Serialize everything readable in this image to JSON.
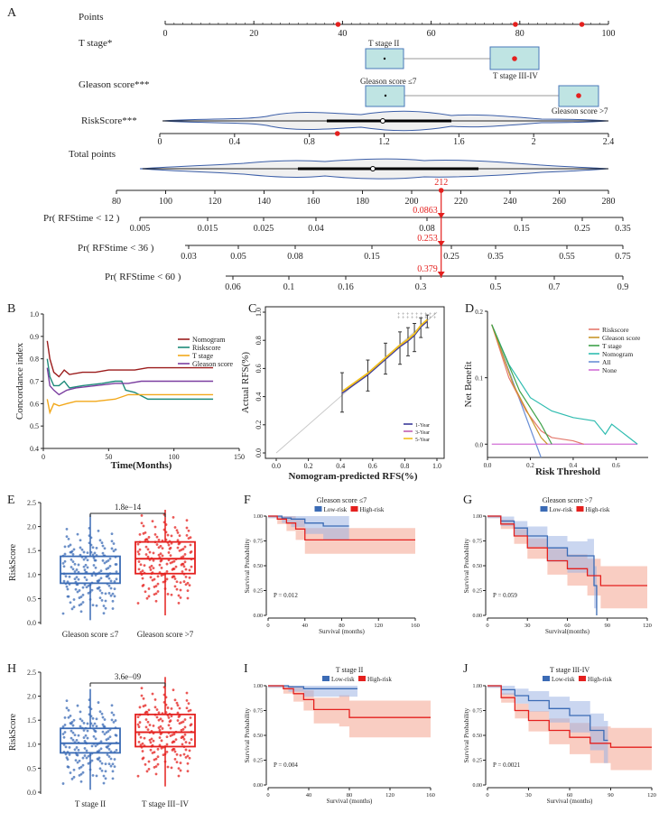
{
  "panel_letters": {
    "A": "A",
    "B": "B",
    "C": "C",
    "D": "D",
    "E": "E",
    "F": "F",
    "G": "G",
    "H": "H",
    "I": "I",
    "J": "J"
  },
  "colors": {
    "red": "#e4201e",
    "blue": "#3b6bb5",
    "teal_box": "#bfe4e3",
    "nomogram_line": "#9b1c1c",
    "riskscore_line": "#1e8a7a",
    "tstage_line": "#f2a81a",
    "gleason_line": "#7b3fa0",
    "high_fill": "#f4a48f",
    "low_fill": "#9fb5e3"
  },
  "chart_data": [
    {
      "id": "A",
      "type": "nomogram",
      "rows": {
        "points": {
          "label": "Points",
          "ticks": [
            "0",
            "20",
            "40",
            "60",
            "80",
            "100"
          ],
          "range": [
            0,
            100
          ],
          "markers": [
            39,
            79,
            94
          ]
        },
        "tstage": {
          "label": "T stage*",
          "box1": "T stage II",
          "box2": "T stage III-IV"
        },
        "gleason": {
          "label": "Gleason score***",
          "box1": "Gleason score ≤7",
          "box2": "Gleason score >7"
        },
        "riskscore": {
          "label": "RiskScore***",
          "ticks": [
            "0",
            "0.4",
            "0.8",
            "1.2",
            "1.6",
            "2",
            "2.4"
          ],
          "range": [
            0,
            2.4
          ],
          "marker": 0.95
        },
        "total": {
          "label": "Total points",
          "ticks": [
            "80",
            "100",
            "120",
            "140",
            "160",
            "180",
            "200",
            "220",
            "240",
            "260",
            "280"
          ],
          "range": [
            80,
            280
          ],
          "value": "212"
        },
        "pr12": {
          "label": "Pr( RFStime < 12 )",
          "ticks": [
            "0.005",
            "0.015",
            "0.025",
            "0.04",
            "0.08",
            "0.15",
            "0.25",
            "0.35"
          ],
          "value": "0.0863"
        },
        "pr36": {
          "label": "Pr( RFStime < 36 )",
          "ticks": [
            "0.03",
            "0.05",
            "0.08",
            "0.15",
            "0.25",
            "0.35",
            "0.55",
            "0.75"
          ],
          "value": "0.253"
        },
        "pr60": {
          "label": "Pr( RFStime < 60 )",
          "ticks": [
            "0.06",
            "0.1",
            "0.16",
            "0.3",
            "0.5",
            "0.7",
            "0.9"
          ],
          "value": "0.379"
        }
      }
    },
    {
      "id": "B",
      "type": "line",
      "xlabel": "Time(Months)",
      "ylabel": "Concordance index",
      "xlim": [
        0,
        150
      ],
      "ylim": [
        0.4,
        1.0
      ],
      "xticks": [
        "0",
        "50",
        "100",
        "150"
      ],
      "yticks": [
        "0.4",
        "0.5",
        "0.6",
        "0.7",
        "0.8",
        "0.9",
        "1.0"
      ],
      "legend": [
        "Nomogram",
        "Riskscore",
        "T stage",
        "Gleason score"
      ],
      "series": [
        {
          "name": "Nomogram",
          "points": [
            [
              3,
              0.88
            ],
            [
              5,
              0.8
            ],
            [
              8,
              0.74
            ],
            [
              12,
              0.72
            ],
            [
              16,
              0.75
            ],
            [
              20,
              0.73
            ],
            [
              30,
              0.74
            ],
            [
              40,
              0.74
            ],
            [
              50,
              0.75
            ],
            [
              70,
              0.75
            ],
            [
              80,
              0.76
            ],
            [
              100,
              0.76
            ],
            [
              130,
              0.76
            ]
          ]
        },
        {
          "name": "Riskscore",
          "points": [
            [
              3,
              0.8
            ],
            [
              5,
              0.72
            ],
            [
              8,
              0.68
            ],
            [
              12,
              0.68
            ],
            [
              16,
              0.7
            ],
            [
              20,
              0.67
            ],
            [
              30,
              0.68
            ],
            [
              45,
              0.69
            ],
            [
              55,
              0.7
            ],
            [
              60,
              0.7
            ],
            [
              63,
              0.66
            ],
            [
              70,
              0.65
            ],
            [
              80,
              0.62
            ],
            [
              130,
              0.62
            ]
          ]
        },
        {
          "name": "T stage",
          "points": [
            [
              3,
              0.62
            ],
            [
              5,
              0.56
            ],
            [
              8,
              0.6
            ],
            [
              12,
              0.59
            ],
            [
              18,
              0.6
            ],
            [
              25,
              0.61
            ],
            [
              40,
              0.61
            ],
            [
              55,
              0.62
            ],
            [
              65,
              0.64
            ],
            [
              100,
              0.64
            ],
            [
              130,
              0.64
            ]
          ]
        },
        {
          "name": "Gleason score",
          "points": [
            [
              3,
              0.76
            ],
            [
              5,
              0.68
            ],
            [
              8,
              0.66
            ],
            [
              12,
              0.64
            ],
            [
              18,
              0.66
            ],
            [
              25,
              0.67
            ],
            [
              40,
              0.68
            ],
            [
              55,
              0.69
            ],
            [
              65,
              0.69
            ],
            [
              75,
              0.7
            ],
            [
              100,
              0.7
            ],
            [
              130,
              0.7
            ]
          ]
        }
      ]
    },
    {
      "id": "C",
      "type": "calibration",
      "xlabel": "Nomogram-predicted RFS(%)",
      "ylabel": "Actual RFS(%)",
      "xticks": [
        "0.0",
        "0.2",
        "0.4",
        "0.6",
        "0.8",
        "1.0"
      ],
      "yticks": [
        "0.0",
        "0.2",
        "0.4",
        "0.6",
        "0.8",
        "1.0"
      ],
      "legend": [
        "1-Year",
        "3-Year",
        "5-Year"
      ],
      "points": [
        [
          0.41,
          0.43,
          0.29,
          0.57
        ],
        [
          0.57,
          0.56,
          0.44,
          0.66
        ],
        [
          0.68,
          0.67,
          0.56,
          0.78
        ],
        [
          0.77,
          0.76,
          0.63,
          0.86
        ],
        [
          0.82,
          0.8,
          0.69,
          0.89
        ],
        [
          0.86,
          0.84,
          0.72,
          0.92
        ],
        [
          0.9,
          0.9,
          0.82,
          0.96
        ],
        [
          0.94,
          0.94,
          0.89,
          0.98
        ]
      ]
    },
    {
      "id": "D",
      "type": "line",
      "xlabel": "Risk Threshold",
      "ylabel": "Net Benefit",
      "xlim": [
        0,
        0.75
      ],
      "ylim": [
        -0.02,
        0.2
      ],
      "xticks": [
        "0.0",
        "0.2",
        "0.4",
        "0.6"
      ],
      "yticks": [
        "0.0",
        "0.1",
        "0.2"
      ],
      "legend": [
        "Riskscore",
        "Gleason score",
        "T stage",
        "Nomogram",
        "All",
        "None"
      ],
      "series": [
        {
          "name": "All",
          "points": [
            [
              0.02,
              0.18
            ],
            [
              0.25,
              -0.02
            ]
          ]
        },
        {
          "name": "None",
          "points": [
            [
              0.02,
              0.0
            ],
            [
              0.7,
              0.0
            ]
          ]
        },
        {
          "name": "Nomogram",
          "points": [
            [
              0.02,
              0.18
            ],
            [
              0.1,
              0.12
            ],
            [
              0.2,
              0.07
            ],
            [
              0.3,
              0.05
            ],
            [
              0.4,
              0.04
            ],
            [
              0.5,
              0.035
            ],
            [
              0.55,
              0.015
            ],
            [
              0.58,
              0.03
            ],
            [
              0.62,
              0.02
            ],
            [
              0.66,
              0.01
            ],
            [
              0.7,
              0.0
            ]
          ]
        },
        {
          "name": "Riskscore",
          "points": [
            [
              0.02,
              0.18
            ],
            [
              0.1,
              0.1
            ],
            [
              0.18,
              0.05
            ],
            [
              0.25,
              0.02
            ],
            [
              0.3,
              0.01
            ],
            [
              0.4,
              0.005
            ],
            [
              0.45,
              0.0
            ]
          ]
        },
        {
          "name": "Gleason score",
          "points": [
            [
              0.02,
              0.18
            ],
            [
              0.12,
              0.09
            ],
            [
              0.2,
              0.04
            ],
            [
              0.25,
              0.01
            ],
            [
              0.28,
              0.0
            ]
          ]
        },
        {
          "name": "T stage",
          "points": [
            [
              0.02,
              0.18
            ],
            [
              0.15,
              0.08
            ],
            [
              0.25,
              0.03
            ],
            [
              0.3,
              0.0
            ]
          ]
        }
      ]
    },
    {
      "id": "E",
      "type": "boxplot",
      "ylabel": "RiskScore",
      "pvalue": "1.8e−14",
      "yticks": [
        "0.0",
        "0.5",
        "1.0",
        "1.5",
        "2.0",
        "2.5"
      ],
      "groups": [
        {
          "name": "Gleason score ≤7",
          "q1": 0.82,
          "median": 1.02,
          "q3": 1.38,
          "whisker_low": 0.05,
          "whisker_high": 2.25
        },
        {
          "name": "Gleason score >7",
          "q1": 1.02,
          "median": 1.33,
          "q3": 1.68,
          "whisker_low": 0.15,
          "whisker_high": 2.35
        }
      ]
    },
    {
      "id": "F",
      "type": "km",
      "title": "Gleason score ≤7",
      "xlabel": "Survival (months)",
      "ylabel": "Survival Probability",
      "xticks": [
        "0",
        "40",
        "80",
        "120",
        "160"
      ],
      "yticks": [
        "0.00",
        "0.25",
        "0.50",
        "0.75",
        "1.00"
      ],
      "pvalue": "P = 0.012",
      "legend": [
        "Low-risk",
        "High-risk"
      ],
      "curves": [
        {
          "name": "Low-risk",
          "xmax": 88,
          "points": [
            [
              0,
              1.0
            ],
            [
              15,
              0.98
            ],
            [
              25,
              0.97
            ],
            [
              40,
              0.93
            ],
            [
              60,
              0.9
            ],
            [
              88,
              0.9
            ]
          ]
        },
        {
          "name": "High-risk",
          "xmax": 160,
          "points": [
            [
              0,
              1.0
            ],
            [
              10,
              0.97
            ],
            [
              20,
              0.93
            ],
            [
              30,
              0.87
            ],
            [
              40,
              0.76
            ],
            [
              160,
              0.76
            ]
          ]
        }
      ]
    },
    {
      "id": "G",
      "type": "km",
      "title": "Gleason score >7",
      "xlabel": "Survival(months)",
      "ylabel": "Survival Probability",
      "xticks": [
        "0",
        "30",
        "60",
        "90",
        "120"
      ],
      "yticks": [
        "0.00",
        "0.25",
        "0.50",
        "0.75",
        "1.00"
      ],
      "pvalue": "P = 0.059",
      "legend": [
        "Low-risk",
        "High-risk"
      ],
      "curves": [
        {
          "name": "Low-risk",
          "xmax": 82,
          "points": [
            [
              0,
              1.0
            ],
            [
              10,
              0.95
            ],
            [
              20,
              0.88
            ],
            [
              30,
              0.8
            ],
            [
              45,
              0.68
            ],
            [
              60,
              0.6
            ],
            [
              75,
              0.6
            ],
            [
              80,
              0.3
            ],
            [
              82,
              0.0
            ]
          ]
        },
        {
          "name": "High-risk",
          "xmax": 120,
          "points": [
            [
              0,
              1.0
            ],
            [
              10,
              0.92
            ],
            [
              20,
              0.8
            ],
            [
              30,
              0.68
            ],
            [
              45,
              0.55
            ],
            [
              60,
              0.47
            ],
            [
              75,
              0.4
            ],
            [
              85,
              0.3
            ],
            [
              120,
              0.3
            ]
          ]
        }
      ]
    },
    {
      "id": "H",
      "type": "boxplot",
      "ylabel": "RiskScore",
      "pvalue": "3.6e−09",
      "yticks": [
        "0.0",
        "0.5",
        "1.0",
        "1.5",
        "2.0",
        "2.5"
      ],
      "groups": [
        {
          "name": "T stage II",
          "q1": 0.82,
          "median": 1.02,
          "q3": 1.33,
          "whisker_low": 0.05,
          "whisker_high": 2.15
        },
        {
          "name": "T stage III−IV",
          "q1": 0.95,
          "median": 1.25,
          "q3": 1.62,
          "whisker_low": 0.12,
          "whisker_high": 2.4
        }
      ]
    },
    {
      "id": "I",
      "type": "km",
      "title": "T stage II",
      "xlabel": "Survival (months)",
      "ylabel": "Survival Probability",
      "xticks": [
        "0",
        "40",
        "80",
        "120",
        "160"
      ],
      "yticks": [
        "0.00",
        "0.25",
        "0.50",
        "0.75",
        "1.00"
      ],
      "pvalue": "P = 0.004",
      "legend": [
        "Low-risk",
        "High-risk"
      ],
      "curves": [
        {
          "name": "Low-risk",
          "xmax": 88,
          "points": [
            [
              0,
              1.0
            ],
            [
              20,
              0.99
            ],
            [
              35,
              0.97
            ],
            [
              88,
              0.97
            ]
          ]
        },
        {
          "name": "High-risk",
          "xmax": 160,
          "points": [
            [
              0,
              1.0
            ],
            [
              15,
              0.97
            ],
            [
              25,
              0.92
            ],
            [
              35,
              0.86
            ],
            [
              45,
              0.76
            ],
            [
              70,
              0.76
            ],
            [
              80,
              0.68
            ],
            [
              160,
              0.68
            ]
          ]
        }
      ]
    },
    {
      "id": "J",
      "type": "km",
      "title": "T stage III-IV",
      "xlabel": "Survival (months)",
      "ylabel": "Survival Probability",
      "xticks": [
        "0",
        "30",
        "60",
        "90",
        "120"
      ],
      "yticks": [
        "0.00",
        "0.25",
        "0.50",
        "0.75",
        "1.00"
      ],
      "pvalue": "P = 0.0021",
      "legend": [
        "Low-risk",
        "High-risk"
      ],
      "curves": [
        {
          "name": "Low-risk",
          "xmax": 88,
          "points": [
            [
              0,
              1.0
            ],
            [
              10,
              0.96
            ],
            [
              20,
              0.9
            ],
            [
              30,
              0.85
            ],
            [
              45,
              0.77
            ],
            [
              60,
              0.7
            ],
            [
              75,
              0.55
            ],
            [
              85,
              0.45
            ],
            [
              88,
              0.45
            ]
          ]
        },
        {
          "name": "High-risk",
          "xmax": 120,
          "points": [
            [
              0,
              1.0
            ],
            [
              10,
              0.88
            ],
            [
              20,
              0.75
            ],
            [
              30,
              0.65
            ],
            [
              45,
              0.55
            ],
            [
              60,
              0.48
            ],
            [
              75,
              0.42
            ],
            [
              90,
              0.38
            ],
            [
              120,
              0.38
            ]
          ]
        }
      ]
    }
  ]
}
